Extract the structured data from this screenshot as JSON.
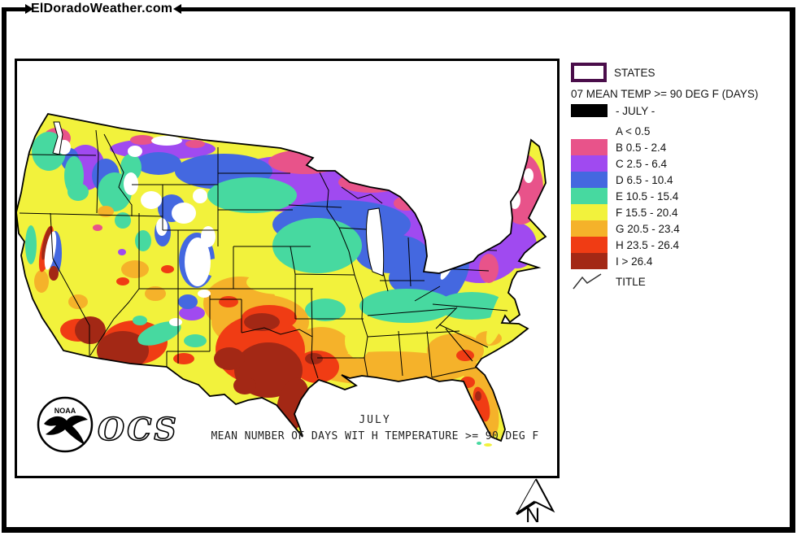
{
  "header": {
    "site_title": "ElDoradoWeather.com"
  },
  "legend": {
    "states_label": "STATES",
    "states_box_border_color": "#4A0D4A",
    "title": "07 MEAN TEMP >= 90 DEG F (DAYS)",
    "period_swatch_color": "#000000",
    "period_label": "- JULY -",
    "classes": [
      {
        "code": "A",
        "label": "A < 0.5",
        "color": "#FFFFFF"
      },
      {
        "code": "B",
        "label": "B 0.5 - 2.4",
        "color": "#E8538A"
      },
      {
        "code": "C",
        "label": "C 2.5 - 6.4",
        "color": "#A04AF0"
      },
      {
        "code": "D",
        "label": "D 6.5 - 10.4",
        "color": "#4468E0"
      },
      {
        "code": "E",
        "label": "E 10.5 - 15.4",
        "color": "#47D9A0"
      },
      {
        "code": "F",
        "label": "F 15.5 - 20.4",
        "color": "#F2F23C"
      },
      {
        "code": "G",
        "label": "G 20.5 - 23.4",
        "color": "#F5B22A"
      },
      {
        "code": "H",
        "label": "H 23.5 - 26.4",
        "color": "#F03C14"
      },
      {
        "code": "I",
        "label": "I > 26.4",
        "color": "#A32815"
      }
    ],
    "title_item_label": "TITLE"
  },
  "map": {
    "caption_line1": "JULY",
    "caption_line2": "MEAN NUMBER OF DAYS WIT H TEMPERATURE >= 90 DEG F",
    "noaa_logo_text": "NOAA",
    "ocs_label": "OCS"
  },
  "compass": {
    "north_label": "N"
  }
}
